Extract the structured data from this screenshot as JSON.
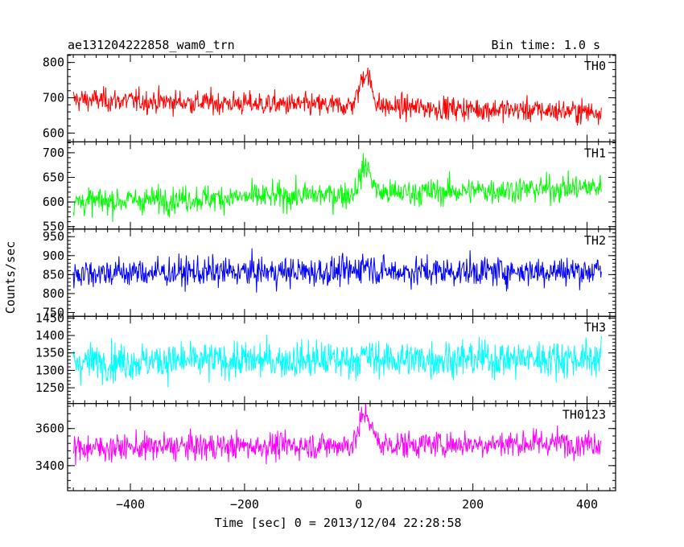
{
  "chart_data": {
    "type": "line",
    "title": "ae131204222858_wam0_trn",
    "bin_time": "Bin time: 1.0 s",
    "xlabel": "Time [sec] 0 = 2013/12/04 22:28:58",
    "ylabel": "Counts/sec",
    "xlim": [
      -510,
      450
    ],
    "xdata_range": [
      -500,
      425
    ],
    "xticks": [
      "−400",
      "−200",
      "0",
      "200",
      "400"
    ],
    "xtick_values": [
      -400,
      -200,
      0,
      200,
      400
    ],
    "panels": [
      {
        "name": "TH0",
        "color": "#ff0000",
        "ylim": [
          575,
          822
        ],
        "mean_start": 695,
        "mean_end": 660,
        "noise": 28,
        "burst": 95,
        "yticks": [
          600,
          700,
          800
        ],
        "ytick_labels": [
          "600",
          "700",
          "800"
        ]
      },
      {
        "name": "TH1",
        "color": "#00ff00",
        "ylim": [
          545,
          722
        ],
        "mean_start": 600,
        "mean_end": 630,
        "noise": 23,
        "burst": 55,
        "yticks": [
          550,
          600,
          650,
          700
        ],
        "ytick_labels": [
          "550",
          "600",
          "650",
          "700"
        ]
      },
      {
        "name": "TH2",
        "color": "#0000ff",
        "ylim": [
          740,
          970
        ],
        "mean_start": 855,
        "mean_end": 860,
        "noise": 33,
        "burst": 20,
        "yticks": [
          750,
          800,
          850,
          900,
          950
        ],
        "ytick_labels": [
          "750",
          "800",
          "850",
          "900",
          "950"
        ]
      },
      {
        "name": "TH3",
        "color": "#00ffff",
        "ylim": [
          1205,
          1455
        ],
        "mean_start": 1325,
        "mean_end": 1335,
        "noise": 45,
        "burst": 10,
        "yticks": [
          1250,
          1300,
          1350,
          1400,
          1450
        ],
        "ytick_labels": [
          "1250",
          "1300",
          "1350",
          "1400",
          "1450"
        ]
      },
      {
        "name": "TH0123",
        "color": "#ff00ff",
        "ylim": [
          3265,
          3735
        ],
        "mean_start": 3495,
        "mean_end": 3525,
        "noise": 62,
        "burst": 170,
        "yticks": [
          3400,
          3600
        ],
        "ytick_labels": [
          "3400",
          "3600"
        ]
      }
    ]
  }
}
